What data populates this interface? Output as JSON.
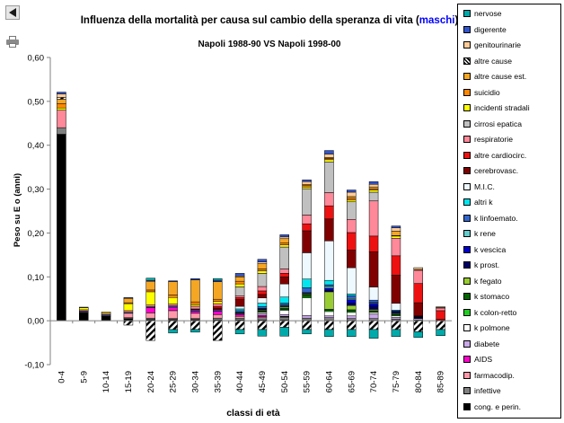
{
  "chart_data": {
    "type": "bar",
    "stacked": true,
    "title_parts": [
      "Influenza della mortalità per causa sul cambio della speranza di vita (",
      "maschi",
      ")"
    ],
    "subtitle": "Napoli 1988-90 VS Napoli 1998-00",
    "xlabel": "classi di età",
    "ylabel": "Peso su E o (anni)",
    "ylim": [
      -0.1,
      0.6
    ],
    "yticks": [
      "-0,10",
      "0,00",
      "0,10",
      "0,20",
      "0,30",
      "0,40",
      "0,50",
      "0,60"
    ],
    "grid": false,
    "legend_position": "right",
    "categories": [
      "0-4",
      "5-9",
      "10-14",
      "15-19",
      "20-24",
      "25-29",
      "30-34",
      "35-39",
      "40-44",
      "45-49",
      "50-54",
      "55-59",
      "60-64",
      "65-69",
      "70-74",
      "75-79",
      "80-84",
      "85-89"
    ],
    "series": [
      {
        "name": "cong. e perin.",
        "color": "#000000",
        "values": [
          0.425,
          0.018,
          0.01,
          0.005,
          0.003,
          0.003,
          0.003,
          0.002,
          0.002,
          0.002,
          0.002,
          0.001,
          0.001,
          0.001,
          0.001,
          0.001,
          0,
          0
        ]
      },
      {
        "name": "infettive",
        "color": "#808080",
        "values": [
          0.015,
          0.002,
          0.002,
          0.002,
          0.003,
          0.002,
          0.002,
          0.004,
          0.004,
          0.005,
          0.006,
          0.005,
          0.006,
          0.004,
          0.004,
          0.003,
          0.002,
          0.001
        ]
      },
      {
        "name": "farmacodip.",
        "color": "#ff99aa",
        "values": [
          0,
          0,
          0,
          0.01,
          0.012,
          0.018,
          0.012,
          0.008,
          0.004,
          0.002,
          0.001,
          0,
          0,
          0,
          0,
          0,
          0,
          0
        ]
      },
      {
        "name": "AIDS",
        "color": "#ff00cc",
        "values": [
          0,
          0,
          0,
          0,
          0.012,
          0.008,
          0.005,
          0.008,
          0.004,
          0.003,
          0.001,
          0,
          0,
          0,
          0,
          0,
          0,
          0
        ]
      },
      {
        "name": "diabete",
        "color": "#c8a8e8",
        "values": [
          0,
          0,
          0,
          0,
          0,
          0,
          0,
          0,
          0.002,
          0.004,
          0.004,
          0.006,
          0.004,
          0.006,
          0.01,
          0.004,
          0.003,
          0
        ]
      },
      {
        "name": "k polmone",
        "color": "#ffffff",
        "values": [
          0,
          0,
          0,
          0,
          0,
          0,
          0,
          0,
          0,
          0.003,
          0.01,
          0.04,
          0.01,
          0.008,
          0.004,
          0.003,
          0.001,
          0
        ]
      },
      {
        "name": "k colon-retto",
        "color": "#22cc22",
        "values": [
          0,
          0,
          0,
          0,
          0,
          0,
          0,
          0,
          0.001,
          0.002,
          0.002,
          0.003,
          0.003,
          0.003,
          0.002,
          0.002,
          0.001,
          0
        ]
      },
      {
        "name": "k stomaco",
        "color": "#006600",
        "values": [
          0,
          0,
          0,
          0,
          0,
          0,
          0,
          0,
          0.001,
          0.002,
          0.003,
          0.004,
          0.002,
          0.003,
          0.002,
          0.002,
          0.001,
          0
        ]
      },
      {
        "name": "k fegato",
        "color": "#99cc33",
        "values": [
          0,
          0,
          0,
          0,
          0,
          0,
          0,
          0,
          0.001,
          0.002,
          0.003,
          0.002,
          0.04,
          0.01,
          0.003,
          0.002,
          0.001,
          0
        ]
      },
      {
        "name": "k prost.",
        "color": "#000066",
        "values": [
          0,
          0,
          0,
          0,
          0,
          0,
          0,
          0,
          0,
          0,
          0,
          0,
          0.003,
          0.005,
          0.008,
          0.002,
          0.002,
          0
        ]
      },
      {
        "name": "k vescica",
        "color": "#0000cc",
        "values": [
          0,
          0,
          0,
          0,
          0,
          0,
          0,
          0,
          0,
          0.002,
          0.002,
          0.002,
          0.005,
          0.008,
          0.006,
          0.003,
          0,
          0
        ]
      },
      {
        "name": "k rene",
        "color": "#66cccc",
        "values": [
          0,
          0,
          0,
          0,
          0,
          0,
          0,
          0,
          0,
          0.001,
          0.002,
          0.002,
          0.004,
          0.003,
          0.002,
          0,
          0,
          0
        ]
      },
      {
        "name": "k linfoemato.",
        "color": "#3366cc",
        "values": [
          0,
          0.002,
          0.002,
          0.002,
          0.002,
          0.003,
          0.003,
          0.003,
          0.004,
          0.004,
          0.004,
          0.01,
          0.004,
          0.006,
          0.005,
          0,
          0,
          0
        ]
      },
      {
        "name": "altri k",
        "color": "#00e5ee",
        "values": [
          0,
          0,
          0,
          0,
          0,
          0,
          0,
          0,
          0.004,
          0.008,
          0.014,
          0.02,
          0.01,
          0.004,
          0,
          0.002,
          0,
          0
        ]
      },
      {
        "name": "M.I.C.",
        "color": "#eef8ff",
        "values": [
          0,
          0,
          0,
          0,
          0,
          0,
          0,
          0,
          0.006,
          0.012,
          0.03,
          0.06,
          0.09,
          0.06,
          0.03,
          0.016,
          0,
          0
        ]
      },
      {
        "name": "cerebrovasc.",
        "color": "#800000",
        "values": [
          0,
          0,
          0,
          0,
          0,
          0,
          0.002,
          0.004,
          0.016,
          0.008,
          0.016,
          0.05,
          0.05,
          0.04,
          0.08,
          0.064,
          0.03,
          0.002
        ]
      },
      {
        "name": "altre cardiocirc.",
        "color": "#ee1111",
        "values": [
          0,
          0,
          0,
          0,
          0,
          0,
          0,
          0.004,
          0.004,
          0.008,
          0.008,
          0.016,
          0.03,
          0.04,
          0.036,
          0.044,
          0.044,
          0.02
        ]
      },
      {
        "name": "respiratorie",
        "color": "#ff8899",
        "values": [
          0.04,
          0.003,
          0.003,
          0.004,
          0.004,
          0.004,
          0.006,
          0.006,
          0.004,
          0.01,
          0.01,
          0.02,
          0.03,
          0.03,
          0.08,
          0.04,
          0.03,
          0.006
        ]
      },
      {
        "name": "cirrosi epatica",
        "color": "#c0c0c0",
        "values": [
          0,
          0,
          0,
          0,
          0,
          0,
          0,
          0,
          0.02,
          0.03,
          0.05,
          0.06,
          0.07,
          0.04,
          0.02,
          0,
          0,
          0
        ]
      },
      {
        "name": "incidenti stradali",
        "color": "#ffff00",
        "values": [
          0.005,
          0.005,
          0.003,
          0.016,
          0.03,
          0.015,
          0.004,
          0.005,
          0.007,
          0.006,
          0.005,
          0.004,
          0.005,
          0.004,
          0.005,
          0.005,
          0,
          0.001
        ]
      },
      {
        "name": "suicidio",
        "color": "#ff8800",
        "values": [
          0.01,
          0,
          0,
          0.002,
          0.004,
          0.006,
          0.006,
          0.005,
          0.006,
          0.004,
          0.004,
          0.004,
          0.003,
          0.004,
          0.003,
          0.001,
          0,
          0
        ]
      },
      {
        "name": "altre cause est.",
        "color": "#f5a623",
        "values": [
          0.01,
          0,
          0,
          0.01,
          0.02,
          0.03,
          0.05,
          0.04,
          0.01,
          0.012,
          0.01,
          0.002,
          0.002,
          0.004,
          0.004,
          0.01,
          0.002,
          0
        ]
      },
      {
        "name": "altre cause",
        "color": "#ffffff",
        "pattern": "stripes",
        "values": [
          0.004,
          0,
          0,
          -0.01,
          -0.045,
          -0.02,
          -0.02,
          -0.045,
          -0.02,
          -0.02,
          -0.015,
          -0.02,
          -0.02,
          -0.02,
          -0.02,
          -0.02,
          -0.025,
          -0.02
        ]
      },
      {
        "name": "genitourinarie",
        "color": "#ffcc99",
        "values": [
          0.008,
          0,
          0,
          0,
          0,
          0,
          0,
          0,
          0.002,
          0.004,
          0.004,
          0.006,
          0.008,
          0.01,
          0.006,
          0.008,
          0.004,
          0.002
        ]
      },
      {
        "name": "digerente",
        "color": "#3355cc",
        "values": [
          0.004,
          0.001,
          0,
          0.002,
          0.002,
          0.002,
          0.003,
          0.003,
          0.006,
          0.006,
          0.005,
          0.004,
          0.008,
          0.005,
          0.006,
          0.004,
          0,
          0
        ]
      },
      {
        "name": "nervose",
        "color": "#00aaaa",
        "values": [
          0,
          0,
          0,
          0,
          0.005,
          -0.008,
          -0.006,
          0.004,
          -0.01,
          -0.015,
          -0.02,
          -0.01,
          -0.016,
          -0.016,
          -0.02,
          -0.016,
          -0.013,
          -0.014
        ]
      }
    ],
    "legend_order": [
      "nervose",
      "digerente",
      "genitourinarie",
      "altre cause",
      "altre cause est.",
      "suicidio",
      "incidenti stradali",
      "cirrosi epatica",
      "respiratorie",
      "altre cardiocirc.",
      "cerebrovasc.",
      "M.I.C.",
      "altri k",
      "k linfoemato.",
      "k rene",
      "k vescica",
      "k prost.",
      "k fegato",
      "k stomaco",
      "k colon-retto",
      "k polmone",
      "diabete",
      "AIDS",
      "farmacodip.",
      "infettive",
      "cong. e perin."
    ]
  },
  "colors": {
    "title_accent": "#0000ff",
    "text": "#000000",
    "axis": "#808080"
  },
  "icons": {
    "nav": "back-arrow-icon",
    "print": "printer-icon"
  }
}
